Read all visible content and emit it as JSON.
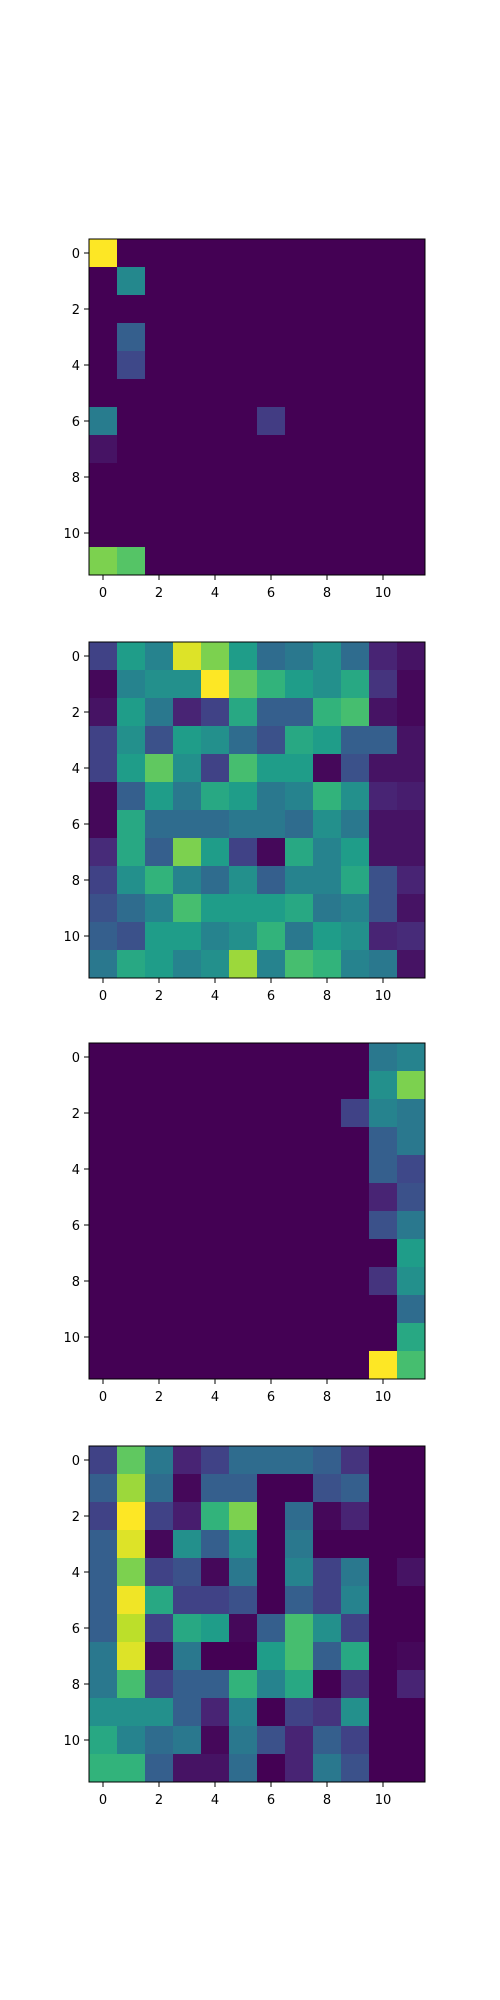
{
  "colormap": "viridis",
  "colors": {
    "background": "#ffffff",
    "axis": "#000000"
  },
  "chart_data": [
    {
      "type": "heatmap",
      "xticks": [
        "0",
        "2",
        "4",
        "6",
        "8",
        "10"
      ],
      "yticks": [
        "0",
        "2",
        "4",
        "6",
        "8",
        "10"
      ],
      "values": [
        [
          1.0,
          0,
          0,
          0,
          0,
          0,
          0,
          0,
          0,
          0,
          0,
          0
        ],
        [
          0,
          0.47,
          0,
          0,
          0,
          0,
          0,
          0,
          0,
          0,
          0,
          0
        ],
        [
          0,
          0,
          0,
          0,
          0,
          0,
          0,
          0,
          0,
          0,
          0,
          0
        ],
        [
          0,
          0.3,
          0,
          0,
          0,
          0,
          0,
          0,
          0,
          0,
          0,
          0
        ],
        [
          0,
          0.22,
          0,
          0,
          0,
          0,
          0,
          0,
          0,
          0,
          0,
          0
        ],
        [
          0,
          0,
          0,
          0,
          0,
          0,
          0,
          0,
          0,
          0,
          0,
          0
        ],
        [
          0.42,
          0,
          0,
          0,
          0,
          0,
          0.18,
          0,
          0,
          0,
          0,
          0
        ],
        [
          0.05,
          0,
          0,
          0,
          0,
          0,
          0,
          0,
          0,
          0,
          0,
          0
        ],
        [
          0,
          0,
          0,
          0,
          0,
          0,
          0,
          0,
          0,
          0,
          0,
          0
        ],
        [
          0,
          0,
          0,
          0,
          0,
          0,
          0,
          0,
          0,
          0,
          0,
          0
        ],
        [
          0,
          0,
          0,
          0,
          0,
          0,
          0,
          0,
          0,
          0,
          0,
          0
        ],
        [
          0.8,
          0.73,
          0,
          0,
          0,
          0,
          0,
          0,
          0,
          0,
          0,
          0
        ]
      ]
    },
    {
      "type": "heatmap",
      "xticks": [
        "0",
        "2",
        "4",
        "6",
        "8",
        "10"
      ],
      "yticks": [
        "0",
        "2",
        "4",
        "6",
        "8",
        "10"
      ],
      "values": [
        [
          0.2,
          0.55,
          0.45,
          0.95,
          0.8,
          0.55,
          0.35,
          0.4,
          0.5,
          0.35,
          0.1,
          0.05
        ],
        [
          0.02,
          0.45,
          0.5,
          0.5,
          1.0,
          0.75,
          0.65,
          0.55,
          0.5,
          0.6,
          0.15,
          0.02
        ],
        [
          0.05,
          0.55,
          0.4,
          0.1,
          0.2,
          0.6,
          0.3,
          0.3,
          0.65,
          0.7,
          0.05,
          0.02
        ],
        [
          0.2,
          0.5,
          0.25,
          0.55,
          0.5,
          0.35,
          0.25,
          0.6,
          0.55,
          0.3,
          0.3,
          0.05
        ],
        [
          0.2,
          0.55,
          0.75,
          0.5,
          0.2,
          0.7,
          0.55,
          0.55,
          0.02,
          0.25,
          0.05,
          0.05
        ],
        [
          0.02,
          0.3,
          0.55,
          0.4,
          0.6,
          0.55,
          0.4,
          0.45,
          0.65,
          0.5,
          0.1,
          0.08
        ],
        [
          0.02,
          0.6,
          0.35,
          0.35,
          0.35,
          0.4,
          0.4,
          0.35,
          0.5,
          0.4,
          0.05,
          0.05
        ],
        [
          0.12,
          0.6,
          0.3,
          0.8,
          0.55,
          0.2,
          0.02,
          0.6,
          0.45,
          0.55,
          0.05,
          0.05
        ],
        [
          0.2,
          0.5,
          0.65,
          0.45,
          0.35,
          0.5,
          0.3,
          0.45,
          0.45,
          0.6,
          0.25,
          0.1
        ],
        [
          0.25,
          0.35,
          0.45,
          0.7,
          0.55,
          0.55,
          0.55,
          0.6,
          0.4,
          0.45,
          0.25,
          0.05
        ],
        [
          0.3,
          0.25,
          0.55,
          0.55,
          0.45,
          0.5,
          0.65,
          0.4,
          0.55,
          0.5,
          0.1,
          0.12
        ],
        [
          0.4,
          0.6,
          0.55,
          0.45,
          0.5,
          0.85,
          0.45,
          0.7,
          0.65,
          0.45,
          0.4,
          0.05
        ]
      ]
    },
    {
      "type": "heatmap",
      "xticks": [
        "0",
        "2",
        "4",
        "6",
        "8",
        "10"
      ],
      "yticks": [
        "0",
        "2",
        "4",
        "6",
        "8",
        "10"
      ],
      "values": [
        [
          0,
          0,
          0,
          0,
          0,
          0,
          0,
          0,
          0,
          0,
          0.4,
          0.45
        ],
        [
          0,
          0,
          0,
          0,
          0,
          0,
          0,
          0,
          0,
          0,
          0.5,
          0.8
        ],
        [
          0,
          0,
          0,
          0,
          0,
          0,
          0,
          0,
          0,
          0.2,
          0.45,
          0.4
        ],
        [
          0,
          0,
          0,
          0,
          0,
          0,
          0,
          0,
          0,
          0,
          0.3,
          0.4
        ],
        [
          0,
          0,
          0,
          0,
          0,
          0,
          0,
          0,
          0,
          0,
          0.3,
          0.22
        ],
        [
          0,
          0,
          0,
          0,
          0,
          0,
          0,
          0,
          0,
          0,
          0.1,
          0.25
        ],
        [
          0,
          0,
          0,
          0,
          0,
          0,
          0,
          0,
          0,
          0,
          0.25,
          0.4
        ],
        [
          0,
          0,
          0,
          0,
          0,
          0,
          0,
          0,
          0,
          0,
          0,
          0.55
        ],
        [
          0,
          0,
          0,
          0,
          0,
          0,
          0,
          0,
          0,
          0,
          0.15,
          0.5
        ],
        [
          0,
          0,
          0,
          0,
          0,
          0,
          0,
          0,
          0,
          0,
          0,
          0.35
        ],
        [
          0,
          0,
          0,
          0,
          0,
          0,
          0,
          0,
          0,
          0,
          0,
          0.6
        ],
        [
          0,
          0,
          0,
          0,
          0,
          0,
          0,
          0,
          0,
          0,
          1.0,
          0.7
        ]
      ]
    },
    {
      "type": "heatmap",
      "xticks": [
        "0",
        "2",
        "4",
        "6",
        "8",
        "10"
      ],
      "yticks": [
        "0",
        "2",
        "4",
        "6",
        "8",
        "10"
      ],
      "values": [
        [
          0.2,
          0.75,
          0.4,
          0.1,
          0.2,
          0.35,
          0.35,
          0.35,
          0.3,
          0.15,
          0,
          0
        ],
        [
          0.3,
          0.85,
          0.35,
          0.02,
          0.3,
          0.3,
          0,
          0,
          0.25,
          0.3,
          0,
          0
        ],
        [
          0.2,
          1.0,
          0.2,
          0.08,
          0.65,
          0.8,
          0,
          0.35,
          0.02,
          0.1,
          0,
          0
        ],
        [
          0.3,
          0.95,
          0.02,
          0.5,
          0.3,
          0.5,
          0,
          0.4,
          0,
          0,
          0,
          0
        ],
        [
          0.3,
          0.8,
          0.2,
          0.25,
          0.02,
          0.4,
          0,
          0.45,
          0.2,
          0.4,
          0,
          0.05
        ],
        [
          0.3,
          0.98,
          0.6,
          0.2,
          0.2,
          0.25,
          0,
          0.3,
          0.2,
          0.45,
          0,
          0
        ],
        [
          0.3,
          0.9,
          0.2,
          0.6,
          0.55,
          0.02,
          0.3,
          0.7,
          0.5,
          0.2,
          0,
          0
        ],
        [
          0.4,
          0.95,
          0.02,
          0.4,
          0,
          0,
          0.55,
          0.7,
          0.3,
          0.6,
          0,
          0.02
        ],
        [
          0.4,
          0.7,
          0.2,
          0.3,
          0.3,
          0.65,
          0.45,
          0.6,
          0,
          0.15,
          0,
          0.1
        ],
        [
          0.5,
          0.5,
          0.5,
          0.3,
          0.1,
          0.45,
          0,
          0.2,
          0.15,
          0.5,
          0,
          0
        ],
        [
          0.6,
          0.45,
          0.35,
          0.4,
          0.02,
          0.4,
          0.25,
          0.1,
          0.3,
          0.2,
          0,
          0
        ],
        [
          0.65,
          0.65,
          0.3,
          0.05,
          0.05,
          0.35,
          0,
          0.1,
          0.4,
          0.25,
          0,
          0
        ]
      ]
    }
  ]
}
